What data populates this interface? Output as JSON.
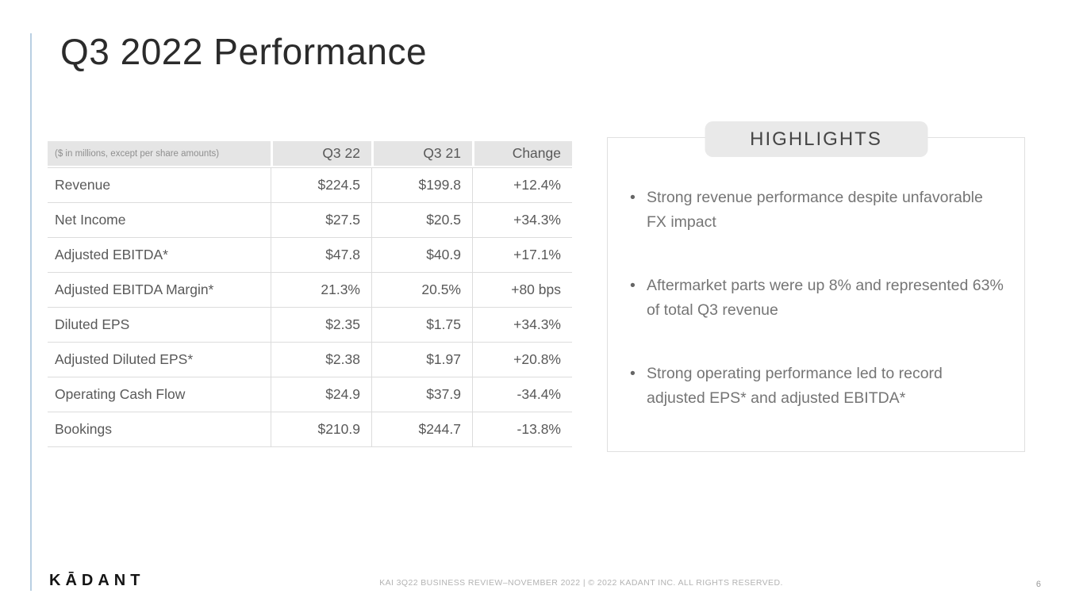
{
  "slide": {
    "title": "Q3 2022 Performance",
    "logo_text": "KĀDANT",
    "footer_text": "KAI 3Q22 BUSINESS REVIEW–NOVEMBER 2022  |  © 2022 KADANT INC. ALL RIGHTS RESERVED.",
    "page_number": "6"
  },
  "table": {
    "note": "($ in millions, except per share amounts)",
    "columns": [
      "Q3 22",
      "Q3 21",
      "Change"
    ],
    "rows": [
      {
        "label": "Revenue",
        "q3_22": "$224.5",
        "q3_21": "$199.8",
        "change": "+12.4%"
      },
      {
        "label": "Net Income",
        "q3_22": "$27.5",
        "q3_21": "$20.5",
        "change": "+34.3%"
      },
      {
        "label": "Adjusted EBITDA*",
        "q3_22": "$47.8",
        "q3_21": "$40.9",
        "change": "+17.1%"
      },
      {
        "label": "Adjusted EBITDA Margin*",
        "q3_22": "21.3%",
        "q3_21": "20.5%",
        "change": "+80 bps"
      },
      {
        "label": "Diluted EPS",
        "q3_22": "$2.35",
        "q3_21": "$1.75",
        "change": "+34.3%"
      },
      {
        "label": "Adjusted Diluted EPS*",
        "q3_22": "$2.38",
        "q3_21": "$1.97",
        "change": "+20.8%"
      },
      {
        "label": "Operating Cash Flow",
        "q3_22": "$24.9",
        "q3_21": "$37.9",
        "change": "-34.4%"
      },
      {
        "label": "Bookings",
        "q3_22": "$210.9",
        "q3_21": "$244.7",
        "change": "-13.8%"
      }
    ]
  },
  "highlights": {
    "title": "HIGHLIGHTS",
    "bullet_icon": "•",
    "bullets": [
      "Strong revenue performance despite unfavorable FX impact",
      "Aftermarket parts were up 8% and represented 63% of total Q3 revenue",
      "Strong operating performance led to record adjusted EPS* and adjusted EBITDA*"
    ]
  },
  "colors": {
    "accent_line": "#b9cfe2",
    "table_header_bg": "#e5e5e5",
    "table_border": "#dcdcdc",
    "highlights_pill_bg": "#e9e9e9",
    "body_text": "#595959",
    "bullet_text": "#757575"
  }
}
